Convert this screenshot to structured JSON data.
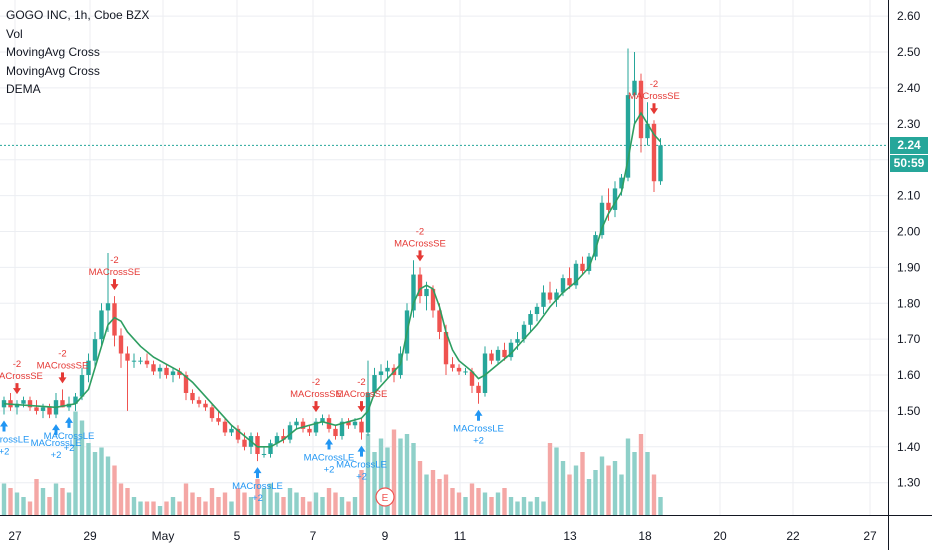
{
  "legend": {
    "symbol": "GOGO INC, 1h, Cboe BZX",
    "vol": "Vol",
    "study1": "MovingAvg Cross",
    "study2": "MovingAvg Cross",
    "study3": "DEMA"
  },
  "colors": {
    "up": "#26a69a",
    "down": "#ef5350",
    "vol_up": "#8fd0c9",
    "vol_down": "#f4a7a5",
    "ma": "#2e9e61",
    "long_signal": "#2196f3",
    "short_signal": "#e53935",
    "grid": "#eceef2",
    "axis_text": "#131722",
    "current_line": "#26a69a"
  },
  "price_badge": {
    "price": "2.24",
    "countdown": "50:59"
  },
  "earnings_marker": "E",
  "chart_data": {
    "type": "candlestick",
    "y_axis": {
      "ticks": [
        "2.60",
        "2.50",
        "2.40",
        "2.30",
        "2.20",
        "2.10",
        "2.00",
        "1.90",
        "1.80",
        "1.70",
        "1.60",
        "1.50",
        "1.40",
        "1.30"
      ],
      "range": [
        1.21,
        2.645
      ]
    },
    "x_axis": {
      "ticks": [
        "27",
        "29",
        "May",
        "5",
        "7",
        "9",
        "11",
        "13",
        "18",
        "20",
        "22",
        "27"
      ],
      "range": [
        0,
        124
      ]
    },
    "current_price": 2.24,
    "candles": [
      {
        "x": 0,
        "o": 1.51,
        "h": 1.54,
        "l": 1.49,
        "c": 1.53,
        "v": 0.35
      },
      {
        "x": 1,
        "o": 1.53,
        "h": 1.55,
        "l": 1.5,
        "c": 1.51,
        "v": 0.3
      },
      {
        "x": 2,
        "o": 1.51,
        "h": 1.53,
        "l": 1.49,
        "c": 1.52,
        "v": 0.25
      },
      {
        "x": 3,
        "o": 1.52,
        "h": 1.54,
        "l": 1.51,
        "c": 1.53,
        "v": 0.2
      },
      {
        "x": 4,
        "o": 1.53,
        "h": 1.54,
        "l": 1.5,
        "c": 1.51,
        "v": 0.15
      },
      {
        "x": 5,
        "o": 1.51,
        "h": 1.53,
        "l": 1.49,
        "c": 1.5,
        "v": 0.4
      },
      {
        "x": 6,
        "o": 1.5,
        "h": 1.52,
        "l": 1.48,
        "c": 1.51,
        "v": 0.3
      },
      {
        "x": 7,
        "o": 1.51,
        "h": 1.52,
        "l": 1.48,
        "c": 1.49,
        "v": 0.2
      },
      {
        "x": 8,
        "o": 1.49,
        "h": 1.55,
        "l": 1.48,
        "c": 1.53,
        "v": 0.35
      },
      {
        "x": 9,
        "o": 1.53,
        "h": 1.56,
        "l": 1.51,
        "c": 1.51,
        "v": 0.3
      },
      {
        "x": 10,
        "o": 1.51,
        "h": 1.54,
        "l": 1.5,
        "c": 1.52,
        "v": 0.25
      },
      {
        "x": 11,
        "o": 1.52,
        "h": 1.55,
        "l": 1.5,
        "c": 1.54,
        "v": 1.15
      },
      {
        "x": 12,
        "o": 1.54,
        "h": 1.62,
        "l": 1.53,
        "c": 1.6,
        "v": 1.05
      },
      {
        "x": 13,
        "o": 1.6,
        "h": 1.66,
        "l": 1.58,
        "c": 1.64,
        "v": 0.8
      },
      {
        "x": 14,
        "o": 1.64,
        "h": 1.72,
        "l": 1.62,
        "c": 1.7,
        "v": 0.7
      },
      {
        "x": 15,
        "o": 1.7,
        "h": 1.8,
        "l": 1.68,
        "c": 1.78,
        "v": 0.75
      },
      {
        "x": 16,
        "o": 1.78,
        "h": 1.94,
        "l": 1.72,
        "c": 1.8,
        "v": 0.65
      },
      {
        "x": 17,
        "o": 1.8,
        "h": 1.82,
        "l": 1.68,
        "c": 1.71,
        "v": 0.55
      },
      {
        "x": 18,
        "o": 1.71,
        "h": 1.73,
        "l": 1.62,
        "c": 1.66,
        "v": 0.35
      },
      {
        "x": 19,
        "o": 1.66,
        "h": 1.68,
        "l": 1.5,
        "c": 1.64,
        "v": 0.3
      },
      {
        "x": 20,
        "o": 1.64,
        "h": 1.66,
        "l": 1.62,
        "c": 1.64,
        "v": 0.2
      },
      {
        "x": 21,
        "o": 1.64,
        "h": 1.65,
        "l": 1.63,
        "c": 1.64,
        "v": 0.15
      },
      {
        "x": 22,
        "o": 1.64,
        "h": 1.66,
        "l": 1.62,
        "c": 1.63,
        "v": 0.15
      },
      {
        "x": 23,
        "o": 1.63,
        "h": 1.64,
        "l": 1.6,
        "c": 1.61,
        "v": 0.15
      },
      {
        "x": 24,
        "o": 1.61,
        "h": 1.63,
        "l": 1.59,
        "c": 1.62,
        "v": 0.1
      },
      {
        "x": 25,
        "o": 1.62,
        "h": 1.63,
        "l": 1.59,
        "c": 1.6,
        "v": 0.15
      },
      {
        "x": 26,
        "o": 1.6,
        "h": 1.62,
        "l": 1.58,
        "c": 1.61,
        "v": 0.2
      },
      {
        "x": 27,
        "o": 1.61,
        "h": 1.62,
        "l": 1.59,
        "c": 1.6,
        "v": 0.15
      },
      {
        "x": 28,
        "o": 1.6,
        "h": 1.61,
        "l": 1.53,
        "c": 1.55,
        "v": 0.35
      },
      {
        "x": 29,
        "o": 1.55,
        "h": 1.56,
        "l": 1.52,
        "c": 1.53,
        "v": 0.25
      },
      {
        "x": 30,
        "o": 1.53,
        "h": 1.54,
        "l": 1.51,
        "c": 1.52,
        "v": 0.2
      },
      {
        "x": 31,
        "o": 1.52,
        "h": 1.53,
        "l": 1.5,
        "c": 1.51,
        "v": 0.15
      },
      {
        "x": 32,
        "o": 1.51,
        "h": 1.52,
        "l": 1.47,
        "c": 1.48,
        "v": 0.3
      },
      {
        "x": 33,
        "o": 1.48,
        "h": 1.5,
        "l": 1.46,
        "c": 1.47,
        "v": 0.2
      },
      {
        "x": 34,
        "o": 1.47,
        "h": 1.48,
        "l": 1.43,
        "c": 1.44,
        "v": 0.25
      },
      {
        "x": 35,
        "o": 1.44,
        "h": 1.46,
        "l": 1.43,
        "c": 1.45,
        "v": 0.15
      },
      {
        "x": 36,
        "o": 1.45,
        "h": 1.46,
        "l": 1.41,
        "c": 1.42,
        "v": 0.3
      },
      {
        "x": 37,
        "o": 1.42,
        "h": 1.44,
        "l": 1.39,
        "c": 1.4,
        "v": 0.25
      },
      {
        "x": 38,
        "o": 1.4,
        "h": 1.44,
        "l": 1.38,
        "c": 1.43,
        "v": 0.2
      },
      {
        "x": 39,
        "o": 1.43,
        "h": 1.44,
        "l": 1.36,
        "c": 1.38,
        "v": 0.4
      },
      {
        "x": 40,
        "o": 1.38,
        "h": 1.4,
        "l": 1.37,
        "c": 1.38,
        "v": 0.3
      },
      {
        "x": 41,
        "o": 1.38,
        "h": 1.42,
        "l": 1.37,
        "c": 1.41,
        "v": 0.35
      },
      {
        "x": 42,
        "o": 1.41,
        "h": 1.44,
        "l": 1.4,
        "c": 1.43,
        "v": 0.25
      },
      {
        "x": 43,
        "o": 1.43,
        "h": 1.45,
        "l": 1.41,
        "c": 1.42,
        "v": 0.2
      },
      {
        "x": 44,
        "o": 1.42,
        "h": 1.47,
        "l": 1.41,
        "c": 1.46,
        "v": 0.3
      },
      {
        "x": 45,
        "o": 1.46,
        "h": 1.48,
        "l": 1.45,
        "c": 1.47,
        "v": 0.25
      },
      {
        "x": 46,
        "o": 1.47,
        "h": 1.48,
        "l": 1.44,
        "c": 1.45,
        "v": 0.2
      },
      {
        "x": 47,
        "o": 1.45,
        "h": 1.46,
        "l": 1.43,
        "c": 1.44,
        "v": 0.15
      },
      {
        "x": 48,
        "o": 1.44,
        "h": 1.48,
        "l": 1.43,
        "c": 1.47,
        "v": 0.25
      },
      {
        "x": 49,
        "o": 1.47,
        "h": 1.49,
        "l": 1.46,
        "c": 1.48,
        "v": 0.2
      },
      {
        "x": 50,
        "o": 1.48,
        "h": 1.49,
        "l": 1.44,
        "c": 1.45,
        "v": 0.3
      },
      {
        "x": 51,
        "o": 1.45,
        "h": 1.46,
        "l": 1.42,
        "c": 1.43,
        "v": 0.25
      },
      {
        "x": 52,
        "o": 1.43,
        "h": 1.48,
        "l": 1.42,
        "c": 1.47,
        "v": 0.2
      },
      {
        "x": 53,
        "o": 1.47,
        "h": 1.48,
        "l": 1.45,
        "c": 1.46,
        "v": 0.15
      },
      {
        "x": 54,
        "o": 1.46,
        "h": 1.48,
        "l": 1.45,
        "c": 1.47,
        "v": 0.2
      },
      {
        "x": 55,
        "o": 1.47,
        "h": 1.48,
        "l": 1.42,
        "c": 1.44,
        "v": 0.5
      },
      {
        "x": 56,
        "o": 1.44,
        "h": 1.64,
        "l": 1.43,
        "c": 1.55,
        "v": 0.9
      },
      {
        "x": 57,
        "o": 1.55,
        "h": 1.62,
        "l": 1.54,
        "c": 1.6,
        "v": 0.7
      },
      {
        "x": 58,
        "o": 1.6,
        "h": 1.63,
        "l": 1.58,
        "c": 1.61,
        "v": 0.85
      },
      {
        "x": 59,
        "o": 1.61,
        "h": 1.64,
        "l": 1.59,
        "c": 1.62,
        "v": 0.75
      },
      {
        "x": 60,
        "o": 1.62,
        "h": 1.63,
        "l": 1.58,
        "c": 1.6,
        "v": 0.95
      },
      {
        "x": 61,
        "o": 1.6,
        "h": 1.68,
        "l": 1.59,
        "c": 1.66,
        "v": 0.85
      },
      {
        "x": 62,
        "o": 1.66,
        "h": 1.8,
        "l": 1.64,
        "c": 1.78,
        "v": 0.9
      },
      {
        "x": 63,
        "o": 1.78,
        "h": 1.92,
        "l": 1.76,
        "c": 1.88,
        "v": 0.8
      },
      {
        "x": 64,
        "o": 1.88,
        "h": 1.9,
        "l": 1.8,
        "c": 1.82,
        "v": 0.6
      },
      {
        "x": 65,
        "o": 1.82,
        "h": 1.86,
        "l": 1.78,
        "c": 1.84,
        "v": 0.45
      },
      {
        "x": 66,
        "o": 1.84,
        "h": 1.85,
        "l": 1.76,
        "c": 1.78,
        "v": 0.5
      },
      {
        "x": 67,
        "o": 1.78,
        "h": 1.8,
        "l": 1.7,
        "c": 1.72,
        "v": 0.4
      },
      {
        "x": 68,
        "o": 1.72,
        "h": 1.74,
        "l": 1.6,
        "c": 1.63,
        "v": 0.45
      },
      {
        "x": 69,
        "o": 1.63,
        "h": 1.65,
        "l": 1.61,
        "c": 1.62,
        "v": 0.3
      },
      {
        "x": 70,
        "o": 1.62,
        "h": 1.63,
        "l": 1.6,
        "c": 1.61,
        "v": 0.25
      },
      {
        "x": 71,
        "o": 1.61,
        "h": 1.62,
        "l": 1.6,
        "c": 1.61,
        "v": 0.2
      },
      {
        "x": 72,
        "o": 1.61,
        "h": 1.62,
        "l": 1.55,
        "c": 1.57,
        "v": 0.35
      },
      {
        "x": 73,
        "o": 1.57,
        "h": 1.58,
        "l": 1.52,
        "c": 1.55,
        "v": 0.3
      },
      {
        "x": 74,
        "o": 1.55,
        "h": 1.68,
        "l": 1.54,
        "c": 1.66,
        "v": 0.25
      },
      {
        "x": 75,
        "o": 1.66,
        "h": 1.67,
        "l": 1.63,
        "c": 1.64,
        "v": 0.2
      },
      {
        "x": 76,
        "o": 1.64,
        "h": 1.68,
        "l": 1.63,
        "c": 1.67,
        "v": 0.25
      },
      {
        "x": 77,
        "o": 1.67,
        "h": 1.69,
        "l": 1.64,
        "c": 1.65,
        "v": 0.3
      },
      {
        "x": 78,
        "o": 1.65,
        "h": 1.7,
        "l": 1.64,
        "c": 1.69,
        "v": 0.2
      },
      {
        "x": 79,
        "o": 1.69,
        "h": 1.72,
        "l": 1.67,
        "c": 1.7,
        "v": 0.15
      },
      {
        "x": 80,
        "o": 1.7,
        "h": 1.75,
        "l": 1.69,
        "c": 1.74,
        "v": 0.2
      },
      {
        "x": 81,
        "o": 1.74,
        "h": 1.78,
        "l": 1.72,
        "c": 1.77,
        "v": 0.15
      },
      {
        "x": 82,
        "o": 1.77,
        "h": 1.8,
        "l": 1.75,
        "c": 1.79,
        "v": 0.2
      },
      {
        "x": 83,
        "o": 1.79,
        "h": 1.85,
        "l": 1.77,
        "c": 1.83,
        "v": 0.15
      },
      {
        "x": 84,
        "o": 1.83,
        "h": 1.86,
        "l": 1.8,
        "c": 1.81,
        "v": 0.8
      },
      {
        "x": 85,
        "o": 1.81,
        "h": 1.84,
        "l": 1.79,
        "c": 1.83,
        "v": 0.75
      },
      {
        "x": 86,
        "o": 1.83,
        "h": 1.88,
        "l": 1.82,
        "c": 1.87,
        "v": 0.6
      },
      {
        "x": 87,
        "o": 1.87,
        "h": 1.9,
        "l": 1.84,
        "c": 1.85,
        "v": 0.45
      },
      {
        "x": 88,
        "o": 1.85,
        "h": 1.92,
        "l": 1.84,
        "c": 1.91,
        "v": 0.55
      },
      {
        "x": 89,
        "o": 1.91,
        "h": 1.93,
        "l": 1.88,
        "c": 1.89,
        "v": 0.7
      },
      {
        "x": 90,
        "o": 1.89,
        "h": 1.94,
        "l": 1.88,
        "c": 1.93,
        "v": 0.4
      },
      {
        "x": 91,
        "o": 1.93,
        "h": 2.0,
        "l": 1.92,
        "c": 1.99,
        "v": 0.5
      },
      {
        "x": 92,
        "o": 1.99,
        "h": 2.1,
        "l": 1.98,
        "c": 2.08,
        "v": 0.65
      },
      {
        "x": 93,
        "o": 2.08,
        "h": 2.12,
        "l": 2.03,
        "c": 2.06,
        "v": 0.55
      },
      {
        "x": 94,
        "o": 2.06,
        "h": 2.14,
        "l": 2.04,
        "c": 2.12,
        "v": 0.6
      },
      {
        "x": 95,
        "o": 2.12,
        "h": 2.16,
        "l": 2.1,
        "c": 2.15,
        "v": 0.45
      },
      {
        "x": 96,
        "o": 2.15,
        "h": 2.51,
        "l": 2.14,
        "c": 2.38,
        "v": 0.85
      },
      {
        "x": 97,
        "o": 2.38,
        "h": 2.5,
        "l": 2.3,
        "c": 2.42,
        "v": 0.7
      },
      {
        "x": 98,
        "o": 2.42,
        "h": 2.44,
        "l": 2.22,
        "c": 2.26,
        "v": 0.9
      },
      {
        "x": 99,
        "o": 2.26,
        "h": 2.36,
        "l": 2.24,
        "c": 2.3,
        "v": 0.7
      },
      {
        "x": 100,
        "o": 2.3,
        "h": 2.31,
        "l": 2.11,
        "c": 2.14,
        "v": 0.45
      },
      {
        "x": 101,
        "o": 2.14,
        "h": 2.26,
        "l": 2.13,
        "c": 2.24,
        "v": 0.2
      }
    ],
    "ma_line": [
      [
        0,
        1.52
      ],
      [
        4,
        1.515
      ],
      [
        8,
        1.51
      ],
      [
        11,
        1.52
      ],
      [
        13,
        1.56
      ],
      [
        15,
        1.68
      ],
      [
        16,
        1.74
      ],
      [
        17,
        1.76
      ],
      [
        18,
        1.75
      ],
      [
        19,
        1.72
      ],
      [
        21,
        1.68
      ],
      [
        23,
        1.65
      ],
      [
        25,
        1.63
      ],
      [
        27,
        1.61
      ],
      [
        29,
        1.58
      ],
      [
        31,
        1.54
      ],
      [
        33,
        1.5
      ],
      [
        35,
        1.46
      ],
      [
        37,
        1.43
      ],
      [
        39,
        1.4
      ],
      [
        41,
        1.4
      ],
      [
        43,
        1.42
      ],
      [
        45,
        1.45
      ],
      [
        47,
        1.46
      ],
      [
        49,
        1.47
      ],
      [
        51,
        1.46
      ],
      [
        53,
        1.47
      ],
      [
        55,
        1.48
      ],
      [
        56,
        1.5
      ],
      [
        57,
        1.55
      ],
      [
        59,
        1.59
      ],
      [
        61,
        1.63
      ],
      [
        62,
        1.72
      ],
      [
        63,
        1.8
      ],
      [
        64,
        1.84
      ],
      [
        65,
        1.85
      ],
      [
        66,
        1.84
      ],
      [
        67,
        1.79
      ],
      [
        68,
        1.72
      ],
      [
        69,
        1.67
      ],
      [
        70,
        1.64
      ],
      [
        72,
        1.61
      ],
      [
        73,
        1.59
      ],
      [
        74,
        1.6
      ],
      [
        76,
        1.63
      ],
      [
        78,
        1.66
      ],
      [
        80,
        1.7
      ],
      [
        82,
        1.74
      ],
      [
        84,
        1.79
      ],
      [
        86,
        1.83
      ],
      [
        88,
        1.86
      ],
      [
        90,
        1.9
      ],
      [
        91,
        1.95
      ],
      [
        92,
        2.01
      ],
      [
        93,
        2.05
      ],
      [
        94,
        2.08
      ],
      [
        95,
        2.11
      ],
      [
        96,
        2.2
      ],
      [
        97,
        2.3
      ],
      [
        98,
        2.33
      ],
      [
        99,
        2.3
      ],
      [
        100,
        2.27
      ],
      [
        101,
        2.25
      ]
    ],
    "signals": [
      {
        "x": 0,
        "type": "long",
        "label": "MACrossLE",
        "value": "+2"
      },
      {
        "x": 2,
        "type": "short",
        "label": "MACrossSE",
        "value": "-2"
      },
      {
        "x": 8,
        "type": "long",
        "label": "MACrossLE",
        "value": "+2"
      },
      {
        "x": 9,
        "type": "short",
        "label": "MACrossSE",
        "value": "-2"
      },
      {
        "x": 10,
        "type": "long",
        "label": "MACrossLE",
        "value": "+2"
      },
      {
        "x": 17,
        "type": "short",
        "label": "MACrossSE",
        "value": "-2"
      },
      {
        "x": 39,
        "type": "long",
        "label": "MACrossLE",
        "value": "+2"
      },
      {
        "x": 48,
        "type": "short",
        "label": "MACrossSE",
        "value": "-2"
      },
      {
        "x": 50,
        "type": "long",
        "label": "MACrossLE",
        "value": "+2"
      },
      {
        "x": 55,
        "type": "short",
        "label": "MACrossSE",
        "value": "-2"
      },
      {
        "x": 55,
        "type": "long",
        "label": "MACrossLE",
        "value": "+2"
      },
      {
        "x": 64,
        "type": "short",
        "label": "MACrossSE",
        "value": "-2"
      },
      {
        "x": 73,
        "type": "long",
        "label": "MACrossLE",
        "value": "+2"
      },
      {
        "x": 100,
        "type": "short",
        "label": "MACrossSE",
        "value": "-2"
      }
    ]
  }
}
